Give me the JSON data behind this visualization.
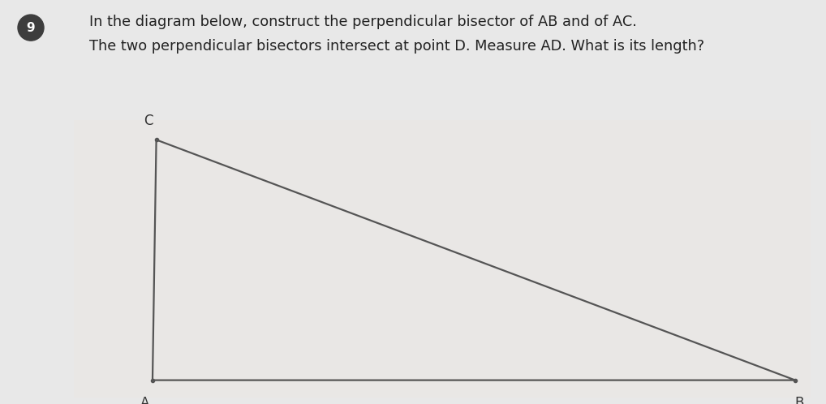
{
  "title_line1": "In the diagram below, construct the perpendicular bisector of ",
  "title_line1_bold": "AB",
  "title_line1_end": " and of ",
  "title_line1_bold2": "AC",
  "title_line1_end2": ".",
  "title_line2": "The two perpendicular bisectors intersect at point ",
  "title_line2_bold": "D",
  "title_line2_mid": ". Measure ",
  "title_line2_bold2": "AD",
  "title_line2_end": ". What is its length?",
  "question_number": "9",
  "bg_color": "#e8e8e8",
  "panel_color": "#e0dedd",
  "panel_bg_light": "#ededec",
  "triangle": {
    "A": [
      0.115,
      0.07
    ],
    "B": [
      0.97,
      0.07
    ],
    "C": [
      0.12,
      0.92
    ]
  },
  "dot_A": [
    0.115,
    0.07
  ],
  "dot_B": [
    0.97,
    0.07
  ],
  "dot_C": [
    0.12,
    0.92
  ],
  "line_color": "#555555",
  "line_width": 1.6,
  "label_fontsize": 12,
  "label_color": "#333333",
  "title_fontsize": 12.8,
  "title_color": "#222222",
  "number_circle_color": "#3d3d3d",
  "number_text_color": "#ffffff",
  "number_fontsize": 11
}
